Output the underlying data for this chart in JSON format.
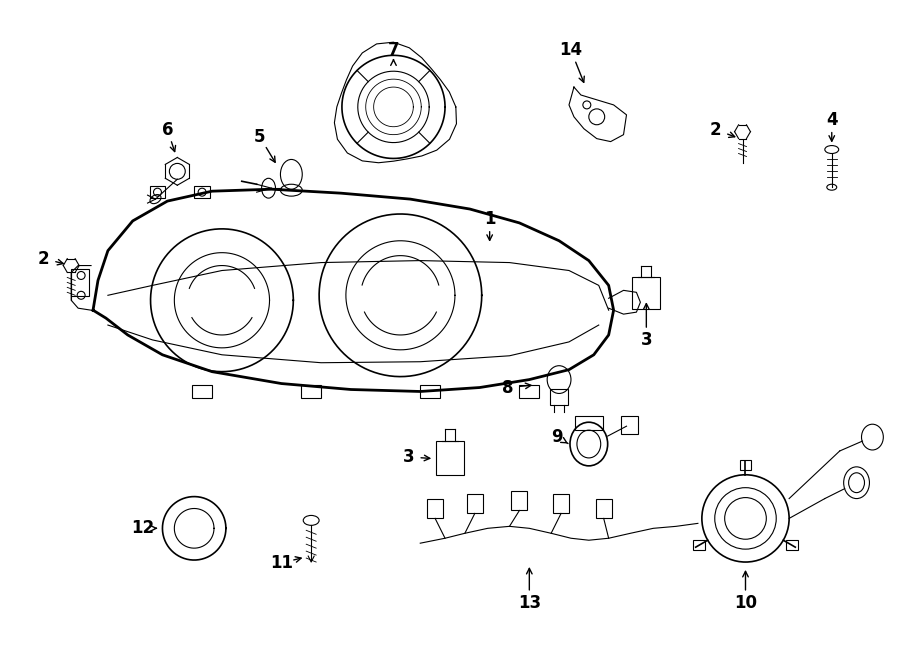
{
  "title": "",
  "background_color": "#ffffff",
  "line_color": "#000000",
  "fig_width": 9.0,
  "fig_height": 6.61,
  "dpi": 100
}
